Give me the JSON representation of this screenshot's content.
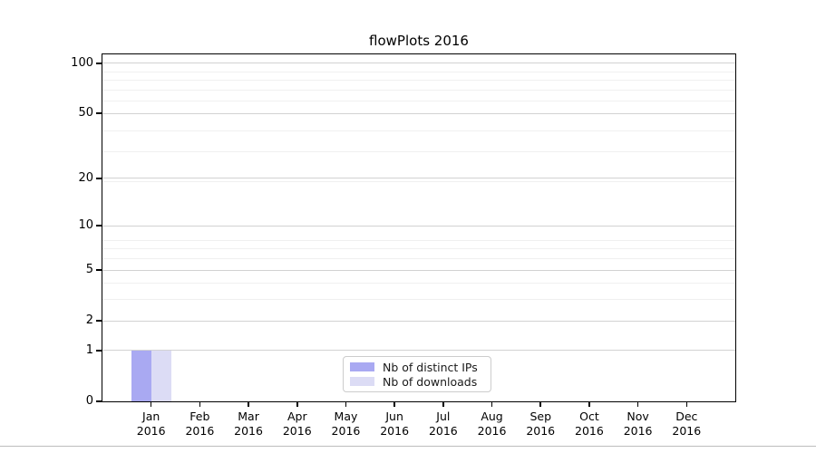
{
  "figure": {
    "title": "flowPlots 2016"
  },
  "legend": {
    "items": [
      {
        "label": "Nb of distinct IPs",
        "color": "#a9a9f2"
      },
      {
        "label": "Nb of downloads",
        "color": "#dcdcf5"
      }
    ]
  },
  "chart_data": {
    "type": "bar",
    "title": "flowPlots 2016",
    "categories": [
      "Jan",
      "Feb",
      "Mar",
      "Apr",
      "May",
      "Jun",
      "Jul",
      "Aug",
      "Sep",
      "Oct",
      "Nov",
      "Dec"
    ],
    "category_year": "2016",
    "series": [
      {
        "name": "Nb of distinct IPs",
        "color": "#a9a9f2",
        "values": [
          1,
          0,
          0,
          0,
          0,
          0,
          0,
          0,
          0,
          0,
          0,
          0
        ]
      },
      {
        "name": "Nb of downloads",
        "color": "#dcdcf5",
        "values": [
          1,
          0,
          0,
          0,
          0,
          0,
          0,
          0,
          0,
          0,
          0,
          0
        ]
      }
    ],
    "xlabel": "",
    "ylabel": "",
    "y_scale": "log1p",
    "y_ticks": [
      0,
      1,
      2,
      5,
      10,
      20,
      50,
      100
    ],
    "y_minor_ticks": [
      3,
      4,
      6,
      7,
      8,
      19,
      29,
      39,
      59,
      69,
      79,
      89
    ],
    "ylim": [
      0,
      113
    ],
    "grid": "horizontal-only",
    "legend_position": "lower center"
  },
  "colors": {
    "grid_major": "#d2d2d2",
    "grid_minor": "#f0f0f0",
    "spine": "#000000",
    "background": "#ffffff"
  }
}
